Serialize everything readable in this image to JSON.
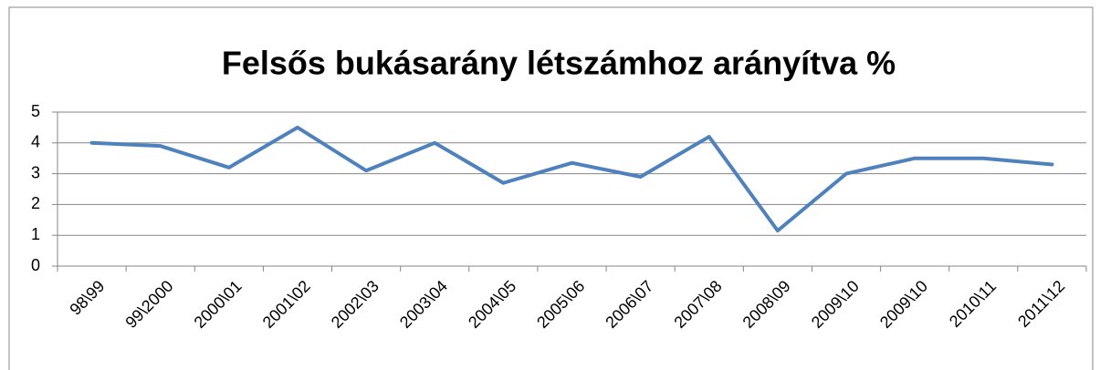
{
  "chart_data": {
    "type": "line",
    "title": "Felsős bukásarány létszámhoz arányítva %",
    "categories": [
      "98\\99",
      "99\\2000",
      "2000\\01",
      "2001\\02",
      "2002\\03",
      "2003\\04",
      "2004\\05",
      "2005\\06",
      "2006\\07",
      "2007\\08",
      "2008\\09",
      "2009\\10",
      "2009\\10",
      "2010\\11",
      "2011\\12"
    ],
    "series": [
      {
        "name": "Felsős bukásarány",
        "color": "#4f81bd",
        "values": [
          4.0,
          3.9,
          3.2,
          4.5,
          3.1,
          4.0,
          2.7,
          3.35,
          2.9,
          4.2,
          1.15,
          3.0,
          3.5,
          3.5,
          3.3
        ]
      }
    ],
    "ylim": [
      0,
      5
    ],
    "yticks": [
      0,
      1,
      2,
      3,
      4,
      5
    ],
    "grid": true
  }
}
